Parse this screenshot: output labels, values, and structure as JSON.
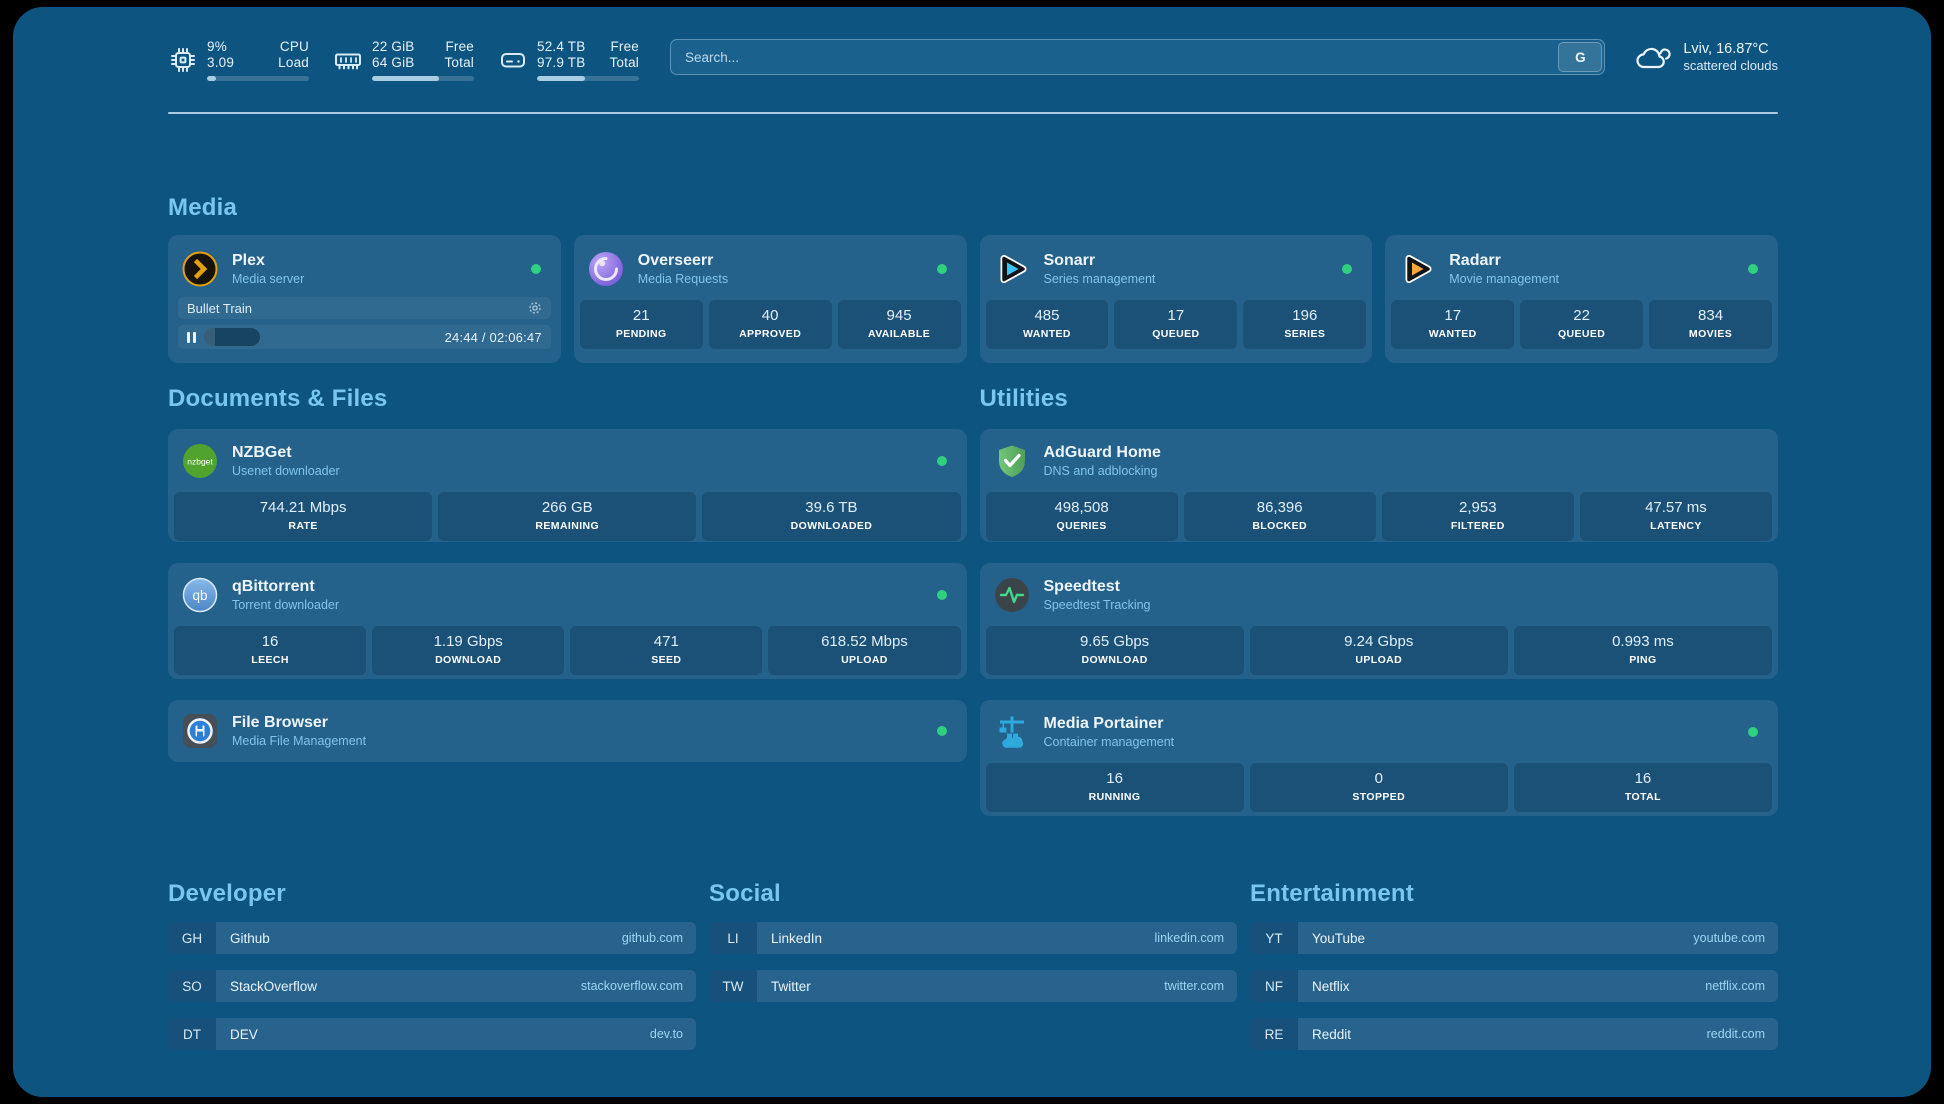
{
  "colors": {
    "page_background": "#0D5580",
    "card_background": "#24618B",
    "heading_accent": "#79C6EF",
    "status_online": "#2FD07F",
    "plex_orange": "#E5A00D",
    "sonarr_blue": "#3BC5F4",
    "radarr_orange": "#F8A63C",
    "nzbget_green": "#4FA32E",
    "adguard_green": "#5FB56A",
    "speedtest_green": "#41D98A",
    "portainer_blue": "#2FA8DC"
  },
  "topbar": {
    "cpu": {
      "values": [
        "9%",
        "3.09"
      ],
      "labels": [
        "CPU",
        "Load"
      ],
      "progress_pct": 9
    },
    "memory": {
      "values": [
        "22 GiB",
        "64 GiB"
      ],
      "labels": [
        "Free",
        "Total"
      ],
      "progress_pct": 66
    },
    "disk": {
      "values": [
        "52.4 TB",
        "97.9 TB"
      ],
      "labels": [
        "Free",
        "Total"
      ],
      "progress_pct": 47
    },
    "search": {
      "placeholder": "Search...",
      "engine_button": "G"
    },
    "weather": {
      "headline": "Lviv, 16.87°C",
      "condition": "scattered clouds"
    }
  },
  "sections": {
    "media": {
      "title": "Media",
      "apps": [
        {
          "name": "Plex",
          "description": "Media server",
          "status": "online",
          "now_playing": {
            "title": "Bullet Train",
            "time": "24:44 / 02:06:47",
            "progress_pct": 20,
            "state": "paused"
          }
        },
        {
          "name": "Overseerr",
          "description": "Media Requests",
          "status": "online",
          "stats": [
            {
              "value": "21",
              "label": "PENDING"
            },
            {
              "value": "40",
              "label": "APPROVED"
            },
            {
              "value": "945",
              "label": "AVAILABLE"
            }
          ]
        },
        {
          "name": "Sonarr",
          "description": "Series management",
          "status": "online",
          "stats": [
            {
              "value": "485",
              "label": "WANTED"
            },
            {
              "value": "17",
              "label": "QUEUED"
            },
            {
              "value": "196",
              "label": "SERIES"
            }
          ]
        },
        {
          "name": "Radarr",
          "description": "Movie management",
          "status": "online",
          "stats": [
            {
              "value": "17",
              "label": "WANTED"
            },
            {
              "value": "22",
              "label": "QUEUED"
            },
            {
              "value": "834",
              "label": "MOVIES"
            }
          ]
        }
      ]
    },
    "documents": {
      "title": "Documents & Files",
      "apps": [
        {
          "name": "NZBGet",
          "description": "Usenet downloader",
          "status": "online",
          "stats": [
            {
              "value": "744.21 Mbps",
              "label": "RATE"
            },
            {
              "value": "266 GB",
              "label": "REMAINING"
            },
            {
              "value": "39.6 TB",
              "label": "DOWNLOADED"
            }
          ]
        },
        {
          "name": "qBittorrent",
          "description": "Torrent downloader",
          "status": "online",
          "stats": [
            {
              "value": "16",
              "label": "LEECH"
            },
            {
              "value": "1.19 Gbps",
              "label": "DOWNLOAD"
            },
            {
              "value": "471",
              "label": "SEED"
            },
            {
              "value": "618.52 Mbps",
              "label": "UPLOAD"
            }
          ]
        },
        {
          "name": "File Browser",
          "description": "Media File Management",
          "status": "online"
        }
      ]
    },
    "utilities": {
      "title": "Utilities",
      "apps": [
        {
          "name": "AdGuard Home",
          "description": "DNS and adblocking",
          "status": "online",
          "stats": [
            {
              "value": "498,508",
              "label": "QUERIES"
            },
            {
              "value": "86,396",
              "label": "BLOCKED"
            },
            {
              "value": "2,953",
              "label": "FILTERED"
            },
            {
              "value": "47.57 ms",
              "label": "LATENCY"
            }
          ]
        },
        {
          "name": "Speedtest",
          "description": "Speedtest Tracking",
          "status": "online",
          "stats": [
            {
              "value": "9.65 Gbps",
              "label": "DOWNLOAD"
            },
            {
              "value": "9.24 Gbps",
              "label": "UPLOAD"
            },
            {
              "value": "0.993 ms",
              "label": "PING"
            }
          ]
        },
        {
          "name": "Media Portainer",
          "description": "Container management",
          "status": "online",
          "stats": [
            {
              "value": "16",
              "label": "RUNNING"
            },
            {
              "value": "0",
              "label": "STOPPED"
            },
            {
              "value": "16",
              "label": "TOTAL"
            }
          ]
        }
      ]
    },
    "bookmarks": [
      {
        "title": "Developer",
        "items": [
          {
            "abbr": "GH",
            "name": "Github",
            "url": "github.com"
          },
          {
            "abbr": "SO",
            "name": "StackOverflow",
            "url": "stackoverflow.com"
          },
          {
            "abbr": "DT",
            "name": "DEV",
            "url": "dev.to"
          }
        ]
      },
      {
        "title": "Social",
        "items": [
          {
            "abbr": "LI",
            "name": "LinkedIn",
            "url": "linkedin.com"
          },
          {
            "abbr": "TW",
            "name": "Twitter",
            "url": "twitter.com"
          }
        ]
      },
      {
        "title": "Entertainment",
        "items": [
          {
            "abbr": "YT",
            "name": "YouTube",
            "url": "youtube.com"
          },
          {
            "abbr": "NF",
            "name": "Netflix",
            "url": "netflix.com"
          },
          {
            "abbr": "RE",
            "name": "Reddit",
            "url": "reddit.com"
          }
        ]
      }
    ]
  }
}
